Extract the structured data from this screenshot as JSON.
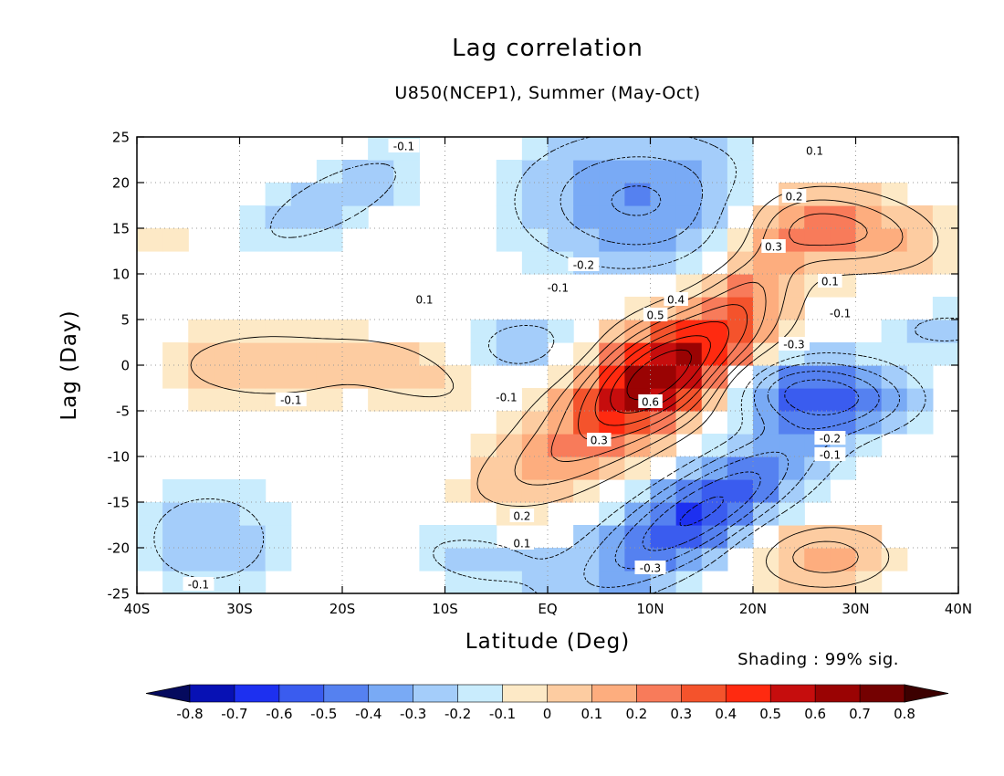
{
  "chart_data": {
    "type": "heatmap",
    "title": "Lag correlation",
    "subtitle": "U850(NCEP1), Summer (May-Oct)",
    "xlabel": "Latitude (Deg)",
    "ylabel": "Lag (Day)",
    "xlim": [
      -40,
      40
    ],
    "ylim": [
      -25,
      25
    ],
    "x_ticks": [
      -40,
      -30,
      -20,
      -10,
      0,
      10,
      20,
      30,
      40
    ],
    "x_tick_labels": [
      "40S",
      "30S",
      "20S",
      "10S",
      "EQ",
      "10N",
      "20N",
      "30N",
      "40N"
    ],
    "y_ticks": [
      25,
      20,
      15,
      10,
      5,
      0,
      -5,
      -10,
      -15,
      -20,
      -25
    ],
    "y_tick_labels": [
      "25",
      "20",
      "15",
      "10",
      "5",
      "0",
      "-5",
      "-10",
      "-15",
      "-20",
      "-25"
    ],
    "grid": true,
    "shading_note": "Shading : 99% sig.",
    "contour_interval": 0.1,
    "features": [
      {
        "name": "main-positive-band",
        "lat": 11,
        "lag": -1,
        "peak": 0.75
      },
      {
        "name": "negative-lower-band",
        "lat": 15,
        "lag": -16,
        "peak": -0.5
      },
      {
        "name": "negative-right-lobe",
        "lat": 25,
        "lag": -3,
        "peak": -0.45
      },
      {
        "name": "negative-upper-lobe",
        "lat": 9,
        "lag": 18,
        "peak": -0.3
      },
      {
        "name": "positive-upper-right",
        "lat": 28,
        "lag": 15,
        "peak": 0.35
      },
      {
        "name": "positive-lower-right",
        "lat": 27,
        "lag": -21,
        "peak": 0.25
      },
      {
        "name": "positive-left-blob",
        "lat": -27,
        "lag": 0,
        "peak": 0.15
      },
      {
        "name": "positive-left-small",
        "lat": -13,
        "lag": -2,
        "peak": 0.15
      },
      {
        "name": "negative-top-left",
        "lat": -21,
        "lag": 18,
        "peak": -0.15
      },
      {
        "name": "negative-bottom-left",
        "lat": -33,
        "lag": -19,
        "peak": -0.15
      },
      {
        "name": "negative-small-eq",
        "lat": -2,
        "lag": 2,
        "peak": -0.15
      },
      {
        "name": "negative-bottom-10s",
        "lat": -8,
        "lag": -21,
        "peak": -0.15
      }
    ],
    "contour_labels": [
      {
        "text": "-0.1",
        "lat": -14,
        "lag": 24
      },
      {
        "text": "0.1",
        "lat": 26,
        "lag": 23.5
      },
      {
        "text": "0.2",
        "lat": 24,
        "lag": 18.5
      },
      {
        "text": "0.3",
        "lat": 22,
        "lag": 13
      },
      {
        "text": "-0.2",
        "lat": 3.5,
        "lag": 11
      },
      {
        "text": "-0.1",
        "lat": 1,
        "lag": 8.5
      },
      {
        "text": "0.1",
        "lat": -12,
        "lag": 7.2
      },
      {
        "text": "0.4",
        "lat": 12.5,
        "lag": 7.2
      },
      {
        "text": "0.1",
        "lat": 27.5,
        "lag": 9.2
      },
      {
        "text": "-0.1",
        "lat": 28.5,
        "lag": 5.7
      },
      {
        "text": "0.5",
        "lat": 10.5,
        "lag": 5.5
      },
      {
        "text": "-0.3",
        "lat": 24,
        "lag": 2.3
      },
      {
        "text": "-0.1",
        "lat": -4,
        "lag": -3.5
      },
      {
        "text": "-0.1",
        "lat": -25,
        "lag": -3.8
      },
      {
        "text": "0.6",
        "lat": 10,
        "lag": -4
      },
      {
        "text": "0.3",
        "lat": 5,
        "lag": -8.2
      },
      {
        "text": "-0.2",
        "lat": 27.5,
        "lag": -8
      },
      {
        "text": "-0.1",
        "lat": 27.5,
        "lag": -9.8
      },
      {
        "text": "0.2",
        "lat": -2.5,
        "lag": -16.5
      },
      {
        "text": "0.1",
        "lat": -2.5,
        "lag": -19.5
      },
      {
        "text": "-0.3",
        "lat": 10,
        "lag": -22.2
      },
      {
        "text": "-0.1",
        "lat": -34,
        "lag": -24
      }
    ],
    "colorbar": {
      "levels": [
        "-0.8",
        "-0.7",
        "-0.6",
        "-0.5",
        "-0.4",
        "-0.3",
        "-0.2",
        "-0.1",
        "0",
        "0.1",
        "0.2",
        "0.3",
        "0.4",
        "0.5",
        "0.6",
        "0.7",
        "0.8"
      ],
      "colors": [
        "#050a5e",
        "#0711b4",
        "#1d30f0",
        "#3a5cef",
        "#5581f0",
        "#79aaf5",
        "#a4cdfa",
        "#c9ecfd",
        "#fde9c6",
        "#fdcca1",
        "#fdad7e",
        "#f87b5a",
        "#f4532c",
        "#ff2a10",
        "#c60d0d",
        "#9a0303",
        "#740101",
        "#3c0000"
      ]
    }
  }
}
